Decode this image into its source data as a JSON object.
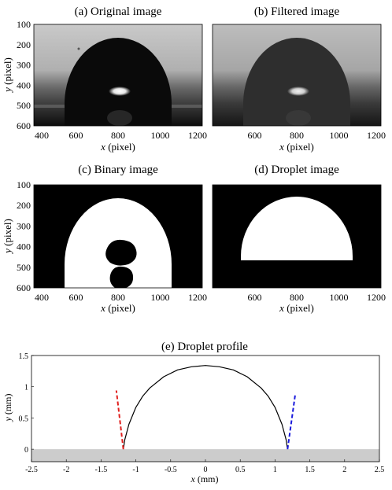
{
  "panels": {
    "a": {
      "title": "(a) Original image",
      "xlabel_var": "x",
      "xlabel_unit": " (pixel)",
      "ylabel_var": "y",
      "ylabel_unit": " (pixel)",
      "xticks": [
        "400",
        "600",
        "800",
        "1000",
        "1200"
      ],
      "yticks": [
        "100",
        "200",
        "300",
        "400",
        "500",
        "600"
      ]
    },
    "b": {
      "title": "(b) Filtered image",
      "xlabel_var": "x",
      "xlabel_unit": " (pixel)",
      "xticks": [
        "600",
        "800",
        "1000",
        "1200"
      ]
    },
    "c": {
      "title": "(c) Binary image",
      "xlabel_var": "x",
      "xlabel_unit": " (pixel)",
      "ylabel_var": "y",
      "ylabel_unit": " (pixel)",
      "xticks": [
        "400",
        "600",
        "800",
        "1000",
        "1200"
      ],
      "yticks": [
        "100",
        "200",
        "300",
        "400",
        "500",
        "600"
      ]
    },
    "d": {
      "title": "(d) Droplet image",
      "xlabel_var": "x",
      "xlabel_unit": " (pixel)",
      "xticks": [
        "600",
        "800",
        "1000",
        "1200"
      ]
    },
    "e": {
      "title": "(e) Droplet profile",
      "xlabel_var": "x",
      "xlabel_unit": " (mm)",
      "ylabel_var": "y",
      "ylabel_unit": " (mm)",
      "xticks": [
        "-2.5",
        "-2",
        "-1.5",
        "-1",
        "-0.5",
        "0",
        "0.5",
        "1",
        "1.5",
        "2",
        "2.5"
      ],
      "yticks": [
        "0",
        "0.5",
        "1",
        "1.5"
      ]
    }
  },
  "colors": {
    "left_tangent": "#e0201e",
    "right_tangent": "#1a1adc",
    "substrate": "#cccccc"
  },
  "chart_data": {
    "type": "line",
    "title": "(e) Droplet profile",
    "xlabel": "x (mm)",
    "ylabel": "y (mm)",
    "xlim": [
      -2.5,
      2.5
    ],
    "ylim": [
      -0.2,
      1.5
    ],
    "grid": false,
    "substrate_below_y": 0,
    "series": [
      {
        "style": "solid-black",
        "x": [
          -1.18,
          -1.16,
          -1.1,
          -1.0,
          -0.9,
          -0.8,
          -0.6,
          -0.4,
          -0.2,
          0,
          0.2,
          0.4,
          0.6,
          0.8,
          0.9,
          1.0,
          1.1,
          1.16,
          1.18
        ],
        "y": [
          0,
          0.15,
          0.4,
          0.67,
          0.85,
          0.98,
          1.16,
          1.27,
          1.32,
          1.34,
          1.32,
          1.27,
          1.16,
          0.98,
          0.85,
          0.67,
          0.4,
          0.15,
          0
        ]
      },
      {
        "style": "dashed-red",
        "x": [
          -1.18,
          -1.28
        ],
        "y": [
          0,
          0.94
        ]
      },
      {
        "style": "dashed-blue",
        "x": [
          1.18,
          1.29
        ],
        "y": [
          0,
          0.87
        ]
      }
    ]
  }
}
